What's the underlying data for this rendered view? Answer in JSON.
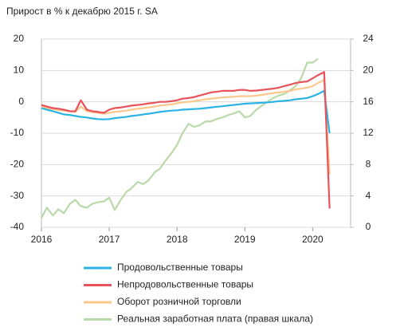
{
  "chart_data": {
    "type": "line",
    "title": "Прирост в % к декабрю 2015 г. SA",
    "x": [
      2016,
      2016.08,
      2016.17,
      2016.25,
      2016.33,
      2016.42,
      2016.5,
      2016.58,
      2016.67,
      2016.75,
      2016.83,
      2016.92,
      2017,
      2017.08,
      2017.17,
      2017.25,
      2017.33,
      2017.42,
      2017.5,
      2017.58,
      2017.67,
      2017.75,
      2017.83,
      2017.92,
      2018,
      2018.08,
      2018.17,
      2018.25,
      2018.33,
      2018.42,
      2018.5,
      2018.58,
      2018.67,
      2018.75,
      2018.83,
      2018.92,
      2019,
      2019.08,
      2019.17,
      2019.25,
      2019.33,
      2019.42,
      2019.5,
      2019.58,
      2019.67,
      2019.75,
      2019.83,
      2019.92,
      2020,
      2020.08,
      2020.17,
      2020.25
    ],
    "xlim": [
      2016,
      2020.56
    ],
    "xticks": [
      2016,
      2017,
      2018,
      2019,
      2020
    ],
    "ylim": [
      -40,
      20
    ],
    "yticks": [
      -40,
      -30,
      -20,
      -10,
      0,
      10,
      20
    ],
    "y2lim": [
      0,
      24
    ],
    "y2ticks": [
      0,
      4,
      8,
      12,
      16,
      20,
      24
    ],
    "grid": true,
    "legend": "bottom",
    "series": [
      {
        "name": "Продовольственные товары",
        "color": "#2bb3e6",
        "values": [
          -2,
          -2.5,
          -3,
          -3.5,
          -4,
          -4.2,
          -4.5,
          -4.8,
          -5,
          -5.3,
          -5.5,
          -5.6,
          -5.5,
          -5.2,
          -5,
          -4.8,
          -4.5,
          -4.3,
          -4,
          -3.8,
          -3.5,
          -3.2,
          -3,
          -2.8,
          -2.7,
          -2.5,
          -2.4,
          -2.3,
          -2.2,
          -2,
          -1.8,
          -1.6,
          -1.4,
          -1.2,
          -1,
          -0.8,
          -0.6,
          -0.5,
          -0.4,
          -0.3,
          -0.2,
          0,
          0.2,
          0.3,
          0.5,
          0.8,
          1,
          1.2,
          1.8,
          2.5,
          3.5,
          -10
        ]
      },
      {
        "name": "Непродовольственные товары",
        "color": "#e8535b",
        "values": [
          -1,
          -1.5,
          -2,
          -2.2,
          -2.5,
          -3,
          -3,
          0.5,
          -2.5,
          -3,
          -3.2,
          -3.5,
          -2.5,
          -2,
          -1.8,
          -1.5,
          -1.2,
          -1,
          -0.8,
          -0.5,
          -0.3,
          0,
          0,
          0.2,
          0.5,
          1,
          1.2,
          1.5,
          2,
          2.5,
          3,
          3.2,
          3.5,
          3.5,
          3.5,
          3.8,
          3.8,
          3.5,
          3.6,
          3.8,
          4,
          4.2,
          4.5,
          5,
          5.5,
          6,
          6.3,
          6.5,
          7.5,
          8.5,
          9.5,
          -34
        ]
      },
      {
        "name": "Оборот розничной торговли",
        "color": "#fbc78a",
        "values": [
          -1.5,
          -2,
          -2.3,
          -2.6,
          -2.8,
          -3,
          -3.2,
          -1.5,
          -3,
          -3.3,
          -3.5,
          -3.8,
          -3.5,
          -3.2,
          -3,
          -2.8,
          -2.5,
          -2.2,
          -2,
          -1.8,
          -1.5,
          -1.2,
          -1,
          -0.8,
          -0.5,
          -0.2,
          0,
          0.2,
          0.5,
          0.8,
          1,
          1.2,
          1.4,
          1.5,
          1.6,
          1.8,
          1.8,
          1.8,
          2,
          2.2,
          2.5,
          2.8,
          3,
          3.2,
          3.5,
          4,
          4.2,
          4.5,
          5,
          6,
          7,
          -23
        ]
      },
      {
        "name": "Реальная заработная плата (правая шкала)",
        "color": "#b9d9a9",
        "axis": "y2",
        "values": [
          1.2,
          2.5,
          1.5,
          2.3,
          1.8,
          3,
          3.5,
          2.7,
          2.5,
          3,
          3.2,
          3.3,
          3.8,
          2.2,
          3.5,
          4.5,
          5,
          5.8,
          5.5,
          6,
          7,
          7.5,
          8.5,
          9.5,
          10.5,
          12,
          13.2,
          12.8,
          13,
          13.5,
          13.5,
          13.8,
          14,
          14.3,
          14.5,
          14.8,
          14,
          14.2,
          15,
          15.5,
          16,
          16.5,
          16.8,
          17,
          17.5,
          18,
          19,
          21,
          21,
          21.5,
          null,
          null
        ]
      }
    ]
  }
}
